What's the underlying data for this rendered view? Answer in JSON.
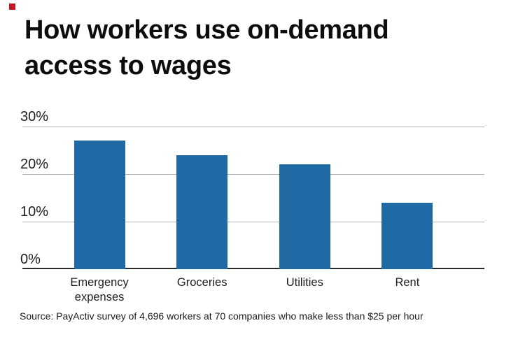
{
  "accent_color": "#c41425",
  "source": "Source: PayActiv survey of 4,696 workers at 70 companies who make less than $25 per hour",
  "chart_data": {
    "type": "bar",
    "title": "How workers use on-demand access to wages",
    "categories": [
      "Emergency expenses",
      "Groceries",
      "Utilities",
      "Rent"
    ],
    "values": [
      27,
      24,
      22,
      14
    ],
    "unit": "%",
    "xlabel": "",
    "ylabel": "",
    "ylim": [
      0,
      30
    ],
    "ytick_values": [
      30,
      20,
      10,
      0
    ],
    "ytick_labels": [
      "30%",
      "20%",
      "10%",
      "0%"
    ],
    "grid": true,
    "legend": "none",
    "bar_color": "#1f6aa4",
    "gridline_color": "#b4b4b4",
    "axis_line_color": "#2b2b2b"
  }
}
